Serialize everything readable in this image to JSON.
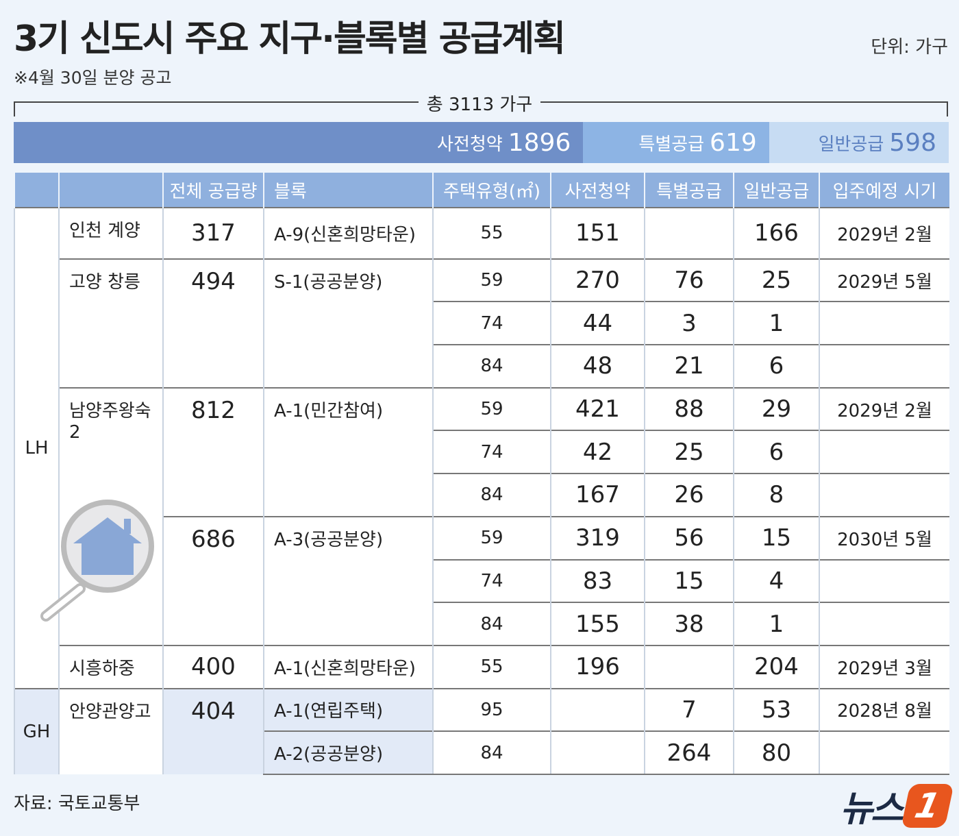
{
  "header": {
    "title": "3기 신도시 주요 지구·블록별 공급계획",
    "subtitle": "※4월 30일 분양 공고",
    "unit": "단위: 가구"
  },
  "bar": {
    "total_label": "총 3113 가구",
    "segments": [
      {
        "label": "사전청약",
        "value": 1896
      },
      {
        "label": "특별공급",
        "value": 619
      },
      {
        "label": "일반공급",
        "value": 598
      }
    ]
  },
  "table": {
    "header": [
      "전체 공급량",
      "블록",
      "주택유형(㎡)",
      "사전청약",
      "특별공급",
      "일반공급",
      "입주예정 시기"
    ],
    "rows": [
      [
        "LH",
        "인천 계양",
        317,
        "A-9(신혼희망타운)",
        55,
        151,
        166,
        "2029년 2월"
      ],
      [
        "고양 창릉",
        494,
        "S-1(공공분양)",
        59,
        270,
        76,
        25,
        "2029년 5월"
      ],
      [
        74,
        44,
        3,
        1
      ],
      [
        84,
        48,
        21,
        6
      ],
      [
        "남양주왕숙2",
        812,
        "A-1(민간참여)",
        59,
        421,
        88,
        29,
        "2029년 2월"
      ],
      [
        74,
        42,
        25,
        6
      ],
      [
        84,
        167,
        26,
        8
      ],
      [
        686,
        "A-3(공공분양)",
        59,
        319,
        56,
        15,
        "2030년 5월"
      ],
      [
        74,
        83,
        15,
        4
      ],
      [
        84,
        155,
        38,
        1
      ],
      [
        "시흥하중",
        400,
        "A-1(신혼희망타운)",
        55,
        196,
        204,
        "2029년 3월"
      ],
      [
        "GH",
        "안양관양고",
        404,
        "A-1(연립주택)",
        95,
        7,
        53,
        "2028년 8월"
      ],
      [
        "A-2(공공분양)",
        84,
        264,
        80
      ]
    ]
  },
  "footer": {
    "source": "자료: 국토교통부",
    "logo_text": "뉴스",
    "logo_mark": "1"
  }
}
